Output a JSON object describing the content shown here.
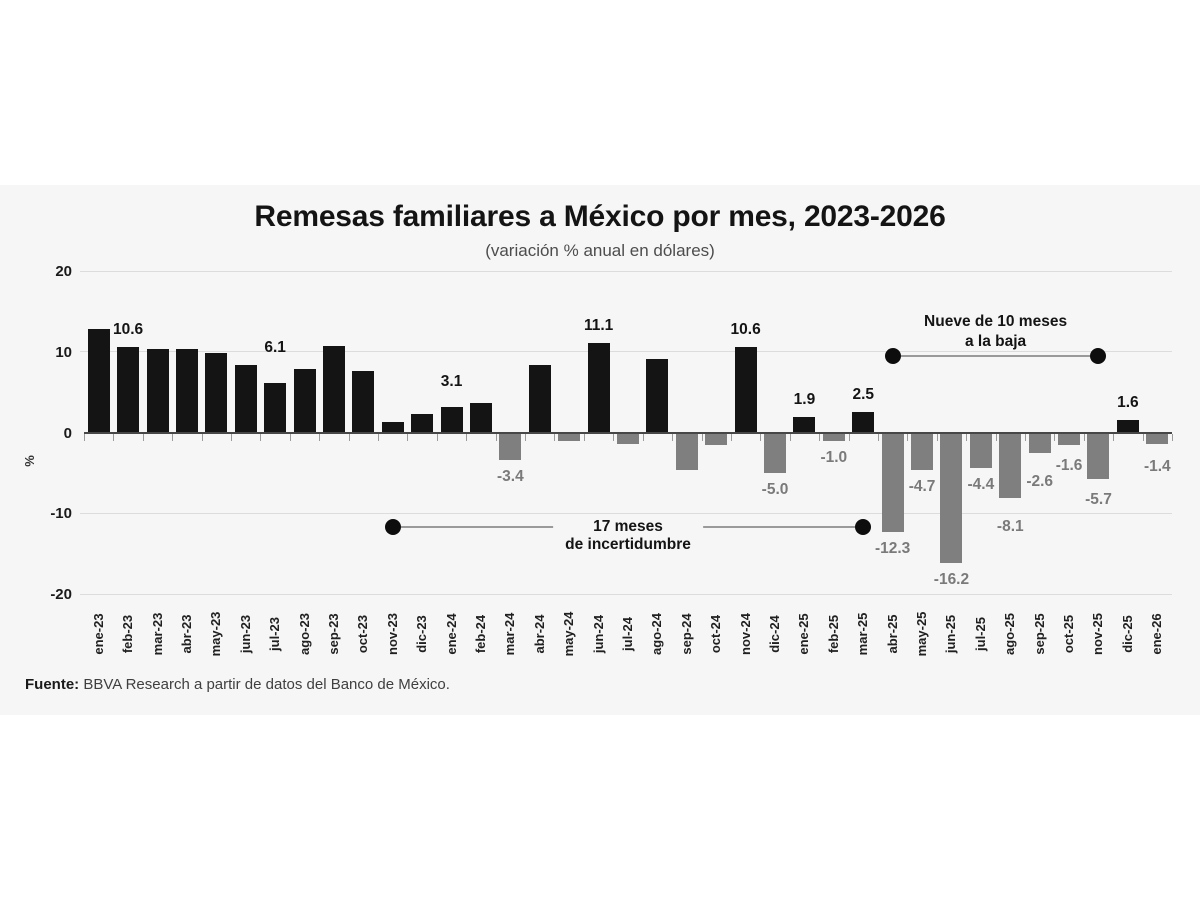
{
  "page": {
    "background": "#ffffff",
    "card_background": "#f6f6f6"
  },
  "chart_data": {
    "type": "bar",
    "title": "Remesas familiares a México por mes, 2023-2026",
    "subtitle": "(variación % anual en dólares)",
    "ylabel": "%",
    "ylim": [
      -20,
      20
    ],
    "yticks": [
      20,
      10,
      0,
      -10,
      -20
    ],
    "grid": "horizontal-light",
    "legend": "none",
    "colors": {
      "positive_bar": "#141414",
      "negative_bar": "#7f7f7f",
      "positive_label": "#141414",
      "negative_label": "#7a7a7a",
      "gridline": "#dcdcdc",
      "axis_line": "#474747",
      "annotation_line": "#9a9a9a",
      "annotation_dot": "#0d0d0d"
    },
    "categories": [
      "ene-23",
      "feb-23",
      "mar-23",
      "abr-23",
      "may-23",
      "jun-23",
      "jul-23",
      "ago-23",
      "sep-23",
      "oct-23",
      "nov-23",
      "dic-23",
      "ene-24",
      "feb-24",
      "mar-24",
      "abr-24",
      "may-24",
      "jun-24",
      "jul-24",
      "ago-24",
      "sep-24",
      "oct-24",
      "nov-24",
      "dic-24",
      "ene-25",
      "feb-25",
      "mar-25",
      "abr-25",
      "may-25",
      "jun-25",
      "jul-25",
      "ago-25",
      "sep-25",
      "oct-25",
      "nov-25",
      "dic-25",
      "ene-26"
    ],
    "values": [
      12.8,
      10.6,
      10.3,
      10.3,
      9.8,
      8.4,
      6.1,
      7.9,
      10.7,
      7.6,
      1.3,
      2.3,
      3.1,
      3.7,
      -3.4,
      8.3,
      -1.1,
      11.1,
      -1.4,
      9.1,
      -4.7,
      -1.6,
      10.6,
      -5.0,
      1.9,
      -1.0,
      2.5,
      -12.3,
      -4.7,
      -16.2,
      -4.4,
      -8.1,
      -2.6,
      -1.6,
      -5.7,
      1.6,
      -1.4
    ],
    "bar_labels": [
      null,
      "10.6",
      null,
      null,
      null,
      null,
      "6.1",
      null,
      null,
      null,
      null,
      null,
      "3.1",
      null,
      "-3.4",
      null,
      null,
      "11.1",
      null,
      null,
      null,
      null,
      "10.6",
      "-5.0",
      "1.9",
      "-1.0",
      "2.5",
      "-12.3",
      "-4.7",
      "-16.2",
      "-4.4",
      "-8.1",
      "-2.6",
      "-1.6",
      "-5.7",
      "1.6",
      "-1.4"
    ],
    "annotations": [
      {
        "line1": "17 meses",
        "line2": "de incertidumbre",
        "start_month": "nov-23",
        "end_month": "mar-25",
        "y_value": -11.7,
        "text_position": "on-line"
      },
      {
        "line1": "Nueve de 10 meses",
        "line2": "a la baja",
        "start_month": "abr-25",
        "end_month": "nov-25",
        "y_value": 9.5,
        "text_position": "above-line"
      }
    ]
  },
  "source": {
    "prefix": "Fuente:",
    "text": " BBVA Research a partir de datos del Banco de México."
  }
}
